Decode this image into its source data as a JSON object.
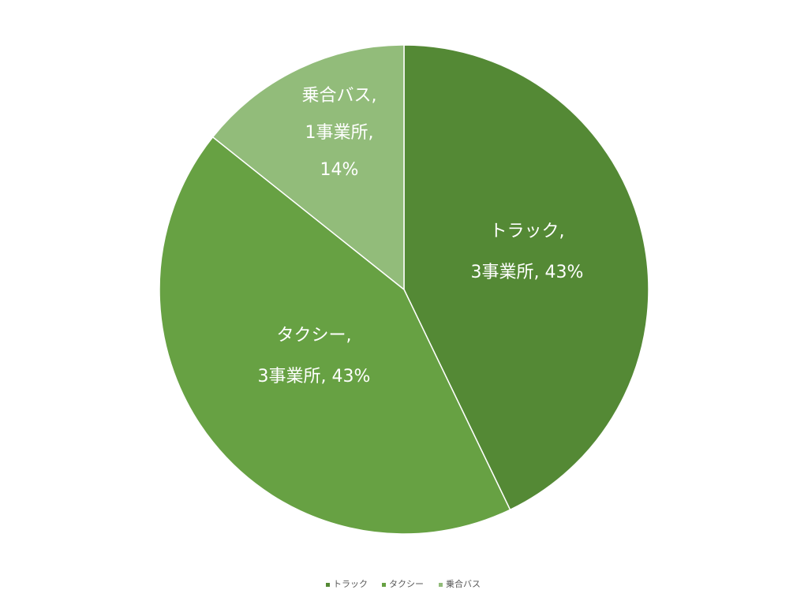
{
  "chart_data": {
    "type": "pie",
    "title": "",
    "start_angle_deg": 0,
    "direction": "clockwise",
    "legend_position": "bottom",
    "slices": [
      {
        "label": "トラック",
        "count_text": "3事業所",
        "percent_text": "43%",
        "value": 3,
        "color": "#548935",
        "label_lines": [
          "トラック,",
          "3事業所, 43%"
        ]
      },
      {
        "label": "タクシー",
        "count_text": "3事業所",
        "percent_text": "43%",
        "value": 3,
        "color": "#67A143",
        "label_lines": [
          "タクシー,",
          "3事業所, 43%"
        ]
      },
      {
        "label": "乗合バス",
        "count_text": "1事業所",
        "percent_text": "14%",
        "value": 1,
        "color": "#92BC7A",
        "label_lines": [
          "乗合バス,",
          "1事業所,",
          "14%"
        ]
      }
    ]
  }
}
